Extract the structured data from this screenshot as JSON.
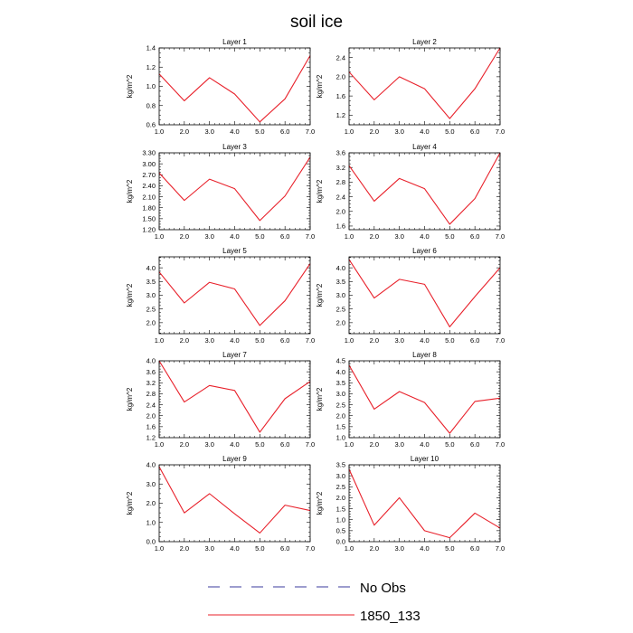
{
  "title": "soil ice",
  "legend": {
    "entries": [
      {
        "label": "No Obs",
        "color": "#3b3b9e",
        "style": "dashed"
      },
      {
        "label": "1850_133",
        "color": "#e8202a",
        "style": "solid"
      }
    ]
  },
  "chart_data": [
    {
      "type": "line",
      "title": "Layer 1",
      "ylabel": "kg/m^2",
      "x": [
        1,
        2,
        3,
        4,
        5,
        6,
        7
      ],
      "xlim": [
        1,
        7
      ],
      "xticks": [
        "1.0",
        "2.0",
        "3.0",
        "4.0",
        "5.0",
        "6.0",
        "7.0"
      ],
      "ylim": [
        0.6,
        1.4
      ],
      "yticks": [
        "0.6",
        "0.8",
        "1.0",
        "1.2",
        "1.4"
      ],
      "series": [
        {
          "name": "1850_133",
          "color": "#e8202a",
          "values": [
            1.13,
            0.85,
            1.09,
            0.92,
            0.63,
            0.87,
            1.32
          ]
        }
      ]
    },
    {
      "type": "line",
      "title": "Layer 2",
      "ylabel": "kg/m^2",
      "x": [
        1,
        2,
        3,
        4,
        5,
        6,
        7
      ],
      "xlim": [
        1,
        7
      ],
      "xticks": [
        "1.0",
        "2.0",
        "3.0",
        "4.0",
        "5.0",
        "6.0",
        "7.0"
      ],
      "ylim": [
        1.0,
        2.6
      ],
      "yticks": [
        "1.2",
        "1.6",
        "2.0",
        "2.4"
      ],
      "series": [
        {
          "name": "1850_133",
          "color": "#e8202a",
          "values": [
            2.1,
            1.52,
            2.0,
            1.75,
            1.13,
            1.75,
            2.6
          ]
        }
      ]
    },
    {
      "type": "line",
      "title": "Layer 3",
      "ylabel": "kg/m^2",
      "x": [
        1,
        2,
        3,
        4,
        5,
        6,
        7
      ],
      "xlim": [
        1,
        7
      ],
      "xticks": [
        "1.0",
        "2.0",
        "3.0",
        "4.0",
        "5.0",
        "6.0",
        "7.0"
      ],
      "ylim": [
        1.2,
        3.3
      ],
      "yticks": [
        "1.20",
        "1.50",
        "1.80",
        "2.10",
        "2.40",
        "2.70",
        "3.00",
        "3.30"
      ],
      "series": [
        {
          "name": "1850_133",
          "color": "#e8202a",
          "values": [
            2.75,
            2.0,
            2.58,
            2.32,
            1.45,
            2.12,
            3.18
          ]
        }
      ]
    },
    {
      "type": "line",
      "title": "Layer 4",
      "ylabel": "kg/m^2",
      "x": [
        1,
        2,
        3,
        4,
        5,
        6,
        7
      ],
      "xlim": [
        1,
        7
      ],
      "xticks": [
        "1.0",
        "2.0",
        "3.0",
        "4.0",
        "5.0",
        "6.0",
        "7.0"
      ],
      "ylim": [
        1.5,
        3.6
      ],
      "yticks": [
        "1.6",
        "2.0",
        "2.4",
        "2.8",
        "3.2",
        "3.6"
      ],
      "series": [
        {
          "name": "1850_133",
          "color": "#e8202a",
          "values": [
            3.25,
            2.28,
            2.9,
            2.62,
            1.65,
            2.35,
            3.6
          ]
        }
      ]
    },
    {
      "type": "line",
      "title": "Layer 5",
      "ylabel": "kg/m^2",
      "x": [
        1,
        2,
        3,
        4,
        5,
        6,
        7
      ],
      "xlim": [
        1,
        7
      ],
      "xticks": [
        "1.0",
        "2.0",
        "3.0",
        "4.0",
        "5.0",
        "6.0",
        "7.0"
      ],
      "ylim": [
        1.6,
        4.4
      ],
      "yticks": [
        "2.0",
        "2.5",
        "3.0",
        "3.5",
        "4.0"
      ],
      "series": [
        {
          "name": "1850_133",
          "color": "#e8202a",
          "values": [
            3.85,
            2.72,
            3.47,
            3.23,
            1.9,
            2.8,
            4.15
          ]
        }
      ]
    },
    {
      "type": "line",
      "title": "Layer 6",
      "ylabel": "kg/m^2",
      "x": [
        1,
        2,
        3,
        4,
        5,
        6,
        7
      ],
      "xlim": [
        1,
        7
      ],
      "xticks": [
        "1.0",
        "2.0",
        "3.0",
        "4.0",
        "5.0",
        "6.0",
        "7.0"
      ],
      "ylim": [
        1.6,
        4.4
      ],
      "yticks": [
        "2.0",
        "2.5",
        "3.0",
        "3.5",
        "4.0"
      ],
      "series": [
        {
          "name": "1850_133",
          "color": "#e8202a",
          "values": [
            4.3,
            2.9,
            3.58,
            3.4,
            1.85,
            2.95,
            4.0
          ]
        }
      ]
    },
    {
      "type": "line",
      "title": "Layer 7",
      "ylabel": "kg/m^2",
      "x": [
        1,
        2,
        3,
        4,
        5,
        6,
        7
      ],
      "xlim": [
        1,
        7
      ],
      "xticks": [
        "1.0",
        "2.0",
        "3.0",
        "4.0",
        "5.0",
        "6.0",
        "7.0"
      ],
      "ylim": [
        1.2,
        4.0
      ],
      "yticks": [
        "1.2",
        "1.6",
        "2.0",
        "2.4",
        "2.8",
        "3.2",
        "3.6",
        "4.0"
      ],
      "series": [
        {
          "name": "1850_133",
          "color": "#e8202a",
          "values": [
            4.0,
            2.5,
            3.1,
            2.92,
            1.4,
            2.62,
            3.25
          ]
        }
      ]
    },
    {
      "type": "line",
      "title": "Layer 8",
      "ylabel": "kg/m^2",
      "x": [
        1,
        2,
        3,
        4,
        5,
        6,
        7
      ],
      "xlim": [
        1,
        7
      ],
      "xticks": [
        "1.0",
        "2.0",
        "3.0",
        "4.0",
        "5.0",
        "6.0",
        "7.0"
      ],
      "ylim": [
        1.0,
        4.5
      ],
      "yticks": [
        "1.0",
        "1.5",
        "2.0",
        "2.5",
        "3.0",
        "3.5",
        "4.0",
        "4.5"
      ],
      "series": [
        {
          "name": "1850_133",
          "color": "#e8202a",
          "values": [
            4.3,
            2.3,
            3.1,
            2.6,
            1.2,
            2.65,
            2.8
          ]
        }
      ]
    },
    {
      "type": "line",
      "title": "Layer 9",
      "ylabel": "kg/m^2",
      "x": [
        1,
        2,
        3,
        4,
        5,
        6,
        7
      ],
      "xlim": [
        1,
        7
      ],
      "xticks": [
        "1.0",
        "2.0",
        "3.0",
        "4.0",
        "5.0",
        "6.0",
        "7.0"
      ],
      "ylim": [
        0.0,
        4.0
      ],
      "yticks": [
        "0.0",
        "1.0",
        "2.0",
        "3.0",
        "4.0"
      ],
      "series": [
        {
          "name": "1850_133",
          "color": "#e8202a",
          "values": [
            3.9,
            1.5,
            2.5,
            1.45,
            0.45,
            1.9,
            1.62
          ]
        }
      ]
    },
    {
      "type": "line",
      "title": "Layer 10",
      "ylabel": "kg/m^2",
      "x": [
        1,
        2,
        3,
        4,
        5,
        6,
        7
      ],
      "xlim": [
        1,
        7
      ],
      "xticks": [
        "1.0",
        "2.0",
        "3.0",
        "4.0",
        "5.0",
        "6.0",
        "7.0"
      ],
      "ylim": [
        0.0,
        3.5
      ],
      "yticks": [
        "0.0",
        "0.5",
        "1.0",
        "1.5",
        "2.0",
        "2.5",
        "3.0",
        "3.5"
      ],
      "series": [
        {
          "name": "1850_133",
          "color": "#e8202a",
          "values": [
            3.3,
            0.75,
            2.0,
            0.5,
            0.18,
            1.3,
            0.62
          ]
        }
      ]
    }
  ]
}
